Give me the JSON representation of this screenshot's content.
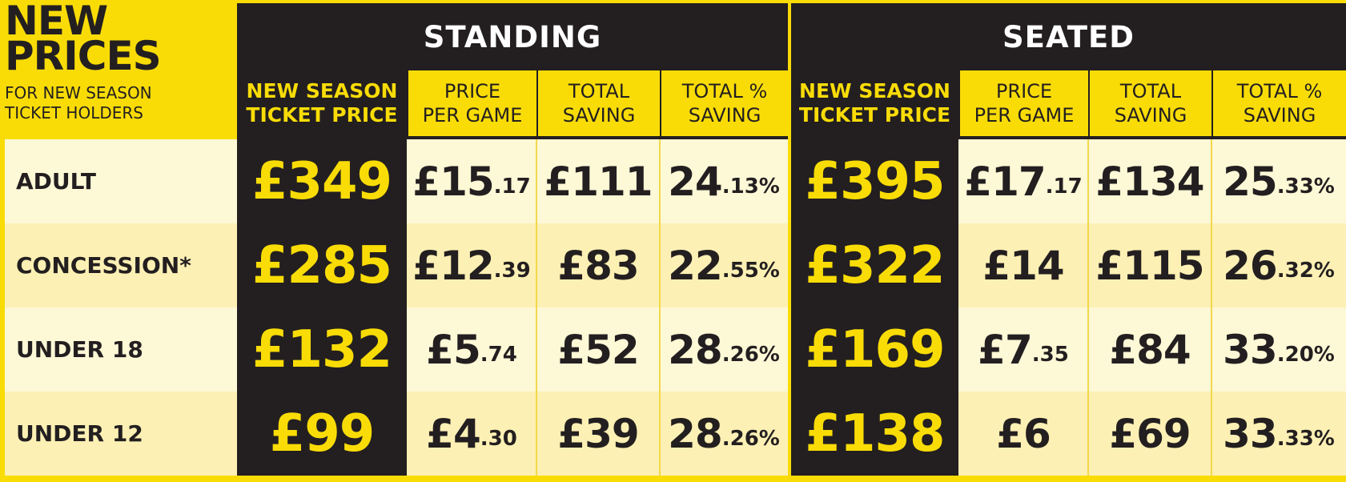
{
  "title": {
    "line1": "NEW",
    "line2": "PRICES",
    "sub1": "FOR NEW SEASON",
    "sub2": "TICKET HOLDERS"
  },
  "sections": {
    "standing": "STANDING",
    "seated": "SEATED"
  },
  "columns": {
    "season_line1": "NEW SEASON",
    "season_line2": "TICKET PRICE",
    "per_game_line1": "PRICE",
    "per_game_line2": "PER GAME",
    "saving_line1": "TOTAL",
    "saving_line2": "SAVING",
    "pct_line1": "TOTAL %",
    "pct_line2": "SAVING"
  },
  "rows": [
    {
      "label": "ADULT",
      "standing": {
        "price": "£349",
        "per_game_main": "£15",
        "per_game_pence": ".17",
        "saving": "£111",
        "pct_main": "24",
        "pct_dec": ".13%"
      },
      "seated": {
        "price": "£395",
        "per_game_main": "£17",
        "per_game_pence": ".17",
        "saving": "£134",
        "pct_main": "25",
        "pct_dec": ".33%"
      }
    },
    {
      "label": "CONCESSION*",
      "standing": {
        "price": "£285",
        "per_game_main": "£12",
        "per_game_pence": ".39",
        "saving": "£83",
        "pct_main": "22",
        "pct_dec": ".55%"
      },
      "seated": {
        "price": "£322",
        "per_game_main": "£14",
        "per_game_pence": "",
        "saving": "£115",
        "pct_main": "26",
        "pct_dec": ".32%"
      }
    },
    {
      "label": "UNDER 18",
      "standing": {
        "price": "£132",
        "per_game_main": "£5",
        "per_game_pence": ".74",
        "saving": "£52",
        "pct_main": "28",
        "pct_dec": ".26%"
      },
      "seated": {
        "price": "£169",
        "per_game_main": "£7",
        "per_game_pence": ".35",
        "saving": "£84",
        "pct_main": "33",
        "pct_dec": ".20%"
      }
    },
    {
      "label": "UNDER 12",
      "standing": {
        "price": "£99",
        "per_game_main": "£4",
        "per_game_pence": ".30",
        "saving": "£39",
        "pct_main": "28",
        "pct_dec": ".26%"
      },
      "seated": {
        "price": "£138",
        "per_game_main": "£6",
        "per_game_pence": "",
        "saving": "£69",
        "pct_main": "33",
        "pct_dec": ".33%"
      }
    }
  ],
  "colors": {
    "brand_yellow": "#f9dc06",
    "dark": "#231f20",
    "row_light": "#fdf8d6",
    "row_alt": "#fdf0b4"
  }
}
